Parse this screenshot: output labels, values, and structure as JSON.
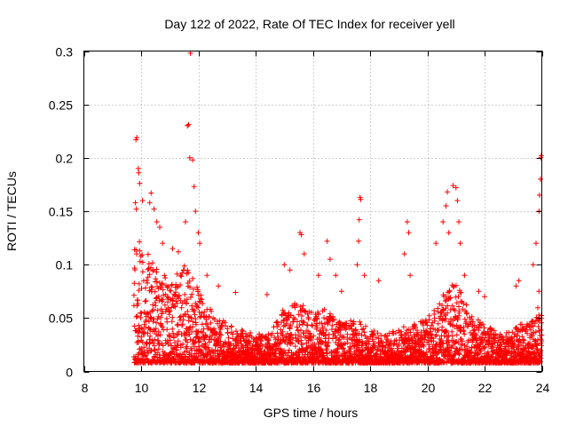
{
  "chart_data": {
    "type": "scatter",
    "title": "Day 122 of 2022, Rate Of TEC Index for receiver yell",
    "xlabel": "GPS time / hours",
    "ylabel": "ROTI / TECUs",
    "xlim": [
      8,
      24
    ],
    "ylim": [
      0,
      0.3
    ],
    "x_ticks": [
      8,
      10,
      12,
      14,
      16,
      18,
      20,
      22,
      24
    ],
    "x_tick_labels": [
      "8",
      "10",
      "12",
      "14",
      "16",
      "18",
      "20",
      "22",
      "24"
    ],
    "y_ticks": [
      0,
      0.05,
      0.1,
      0.15,
      0.2,
      0.25,
      0.3
    ],
    "y_tick_labels": [
      "0",
      "0.05",
      "0.1",
      "0.15",
      "0.2",
      "0.25",
      "0.3"
    ],
    "grid": true,
    "marker": "+",
    "marker_color": "#ff0000",
    "series": [
      {
        "name": "ROTI",
        "points": [
          [
            9.82,
            0.217
          ],
          [
            9.85,
            0.219
          ],
          [
            9.8,
            0.158
          ],
          [
            9.83,
            0.152
          ],
          [
            9.9,
            0.19
          ],
          [
            9.92,
            0.186
          ],
          [
            9.95,
            0.176
          ],
          [
            10.05,
            0.16
          ],
          [
            10.3,
            0.158
          ],
          [
            10.35,
            0.167
          ],
          [
            10.45,
            0.152
          ],
          [
            10.55,
            0.14
          ],
          [
            10.65,
            0.135
          ],
          [
            10.75,
            0.12
          ],
          [
            11.1,
            0.115
          ],
          [
            11.3,
            0.112
          ],
          [
            11.55,
            0.14
          ],
          [
            11.62,
            0.23
          ],
          [
            11.66,
            0.231
          ],
          [
            11.7,
            0.2
          ],
          [
            11.72,
            0.298
          ],
          [
            11.8,
            0.198
          ],
          [
            11.85,
            0.173
          ],
          [
            11.9,
            0.15
          ],
          [
            12.0,
            0.13
          ],
          [
            12.05,
            0.12
          ],
          [
            12.3,
            0.09
          ],
          [
            12.7,
            0.08
          ],
          [
            13.3,
            0.074
          ],
          [
            14.4,
            0.072
          ],
          [
            15.0,
            0.1
          ],
          [
            15.2,
            0.095
          ],
          [
            15.55,
            0.13
          ],
          [
            15.6,
            0.128
          ],
          [
            15.7,
            0.11
          ],
          [
            16.2,
            0.09
          ],
          [
            16.5,
            0.122
          ],
          [
            16.6,
            0.105
          ],
          [
            16.8,
            0.09
          ],
          [
            17.0,
            0.075
          ],
          [
            17.55,
            0.1
          ],
          [
            17.6,
            0.122
          ],
          [
            17.65,
            0.163
          ],
          [
            17.67,
            0.161
          ],
          [
            17.62,
            0.142
          ],
          [
            17.8,
            0.09
          ],
          [
            18.3,
            0.085
          ],
          [
            19.2,
            0.11
          ],
          [
            19.3,
            0.14
          ],
          [
            19.35,
            0.13
          ],
          [
            19.4,
            0.09
          ],
          [
            20.3,
            0.12
          ],
          [
            20.55,
            0.14
          ],
          [
            20.65,
            0.155
          ],
          [
            20.7,
            0.168
          ],
          [
            20.75,
            0.13
          ],
          [
            20.9,
            0.174
          ],
          [
            21.0,
            0.172
          ],
          [
            21.05,
            0.16
          ],
          [
            21.1,
            0.14
          ],
          [
            21.15,
            0.12
          ],
          [
            21.3,
            0.09
          ],
          [
            21.8,
            0.075
          ],
          [
            22.0,
            0.07
          ],
          [
            23.1,
            0.08
          ],
          [
            23.2,
            0.085
          ],
          [
            23.7,
            0.1
          ],
          [
            23.8,
            0.12
          ],
          [
            23.9,
            0.15
          ],
          [
            23.92,
            0.165
          ],
          [
            23.95,
            0.18
          ],
          [
            23.97,
            0.2
          ],
          [
            23.98,
            0.202
          ],
          [
            23.9,
            0.075
          ]
        ]
      }
    ],
    "envelope": {
      "description": "Dense noise floor of the ROTI series sampled every ~0.01 h from 9.75 to 24 h",
      "x_start": 9.75,
      "x_end": 24.0,
      "upper_profile": [
        [
          9.75,
          0.13
        ],
        [
          10.0,
          0.12
        ],
        [
          10.5,
          0.1
        ],
        [
          11.0,
          0.085
        ],
        [
          11.5,
          0.1
        ],
        [
          12.0,
          0.08
        ],
        [
          12.5,
          0.055
        ],
        [
          13.0,
          0.045
        ],
        [
          13.5,
          0.04
        ],
        [
          14.0,
          0.035
        ],
        [
          14.5,
          0.035
        ],
        [
          15.0,
          0.06
        ],
        [
          15.5,
          0.065
        ],
        [
          16.0,
          0.055
        ],
        [
          16.5,
          0.06
        ],
        [
          17.0,
          0.045
        ],
        [
          17.5,
          0.05
        ],
        [
          18.0,
          0.04
        ],
        [
          18.5,
          0.035
        ],
        [
          19.0,
          0.04
        ],
        [
          19.5,
          0.045
        ],
        [
          20.0,
          0.05
        ],
        [
          20.5,
          0.07
        ],
        [
          21.0,
          0.085
        ],
        [
          21.5,
          0.055
        ],
        [
          22.0,
          0.045
        ],
        [
          22.5,
          0.035
        ],
        [
          23.0,
          0.04
        ],
        [
          23.5,
          0.05
        ],
        [
          24.0,
          0.07
        ]
      ],
      "floor": 0.008
    }
  }
}
